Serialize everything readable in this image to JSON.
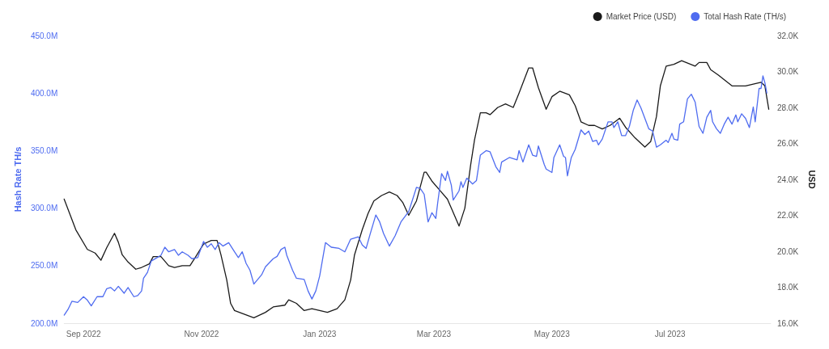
{
  "chart_data": {
    "type": "line",
    "ylabel": "Hash Rate TH/s",
    "y2label": "USD",
    "xlim": [
      "2022-08-22",
      "2023-08-22"
    ],
    "xticks": [
      {
        "value": "2022-09-01",
        "label": "Sep 2022"
      },
      {
        "value": "2022-11-01",
        "label": "Nov 2022"
      },
      {
        "value": "2023-01-01",
        "label": "Jan 2023"
      },
      {
        "value": "2023-03-01",
        "label": "Mar 2023"
      },
      {
        "value": "2023-05-01",
        "label": "May 2023"
      },
      {
        "value": "2023-07-01",
        "label": "Jul 2023"
      }
    ],
    "ylim": [
      200,
      450
    ],
    "yticks": [
      {
        "value": 200,
        "label": "200.0M"
      },
      {
        "value": 250,
        "label": "250.0M"
      },
      {
        "value": 300,
        "label": "300.0M"
      },
      {
        "value": 350,
        "label": "350.0M"
      },
      {
        "value": 400,
        "label": "400.0M"
      },
      {
        "value": 450,
        "label": "450.0M"
      }
    ],
    "y2lim": [
      16,
      32
    ],
    "y2ticks": [
      {
        "value": 16,
        "label": "16.0K"
      },
      {
        "value": 18,
        "label": "18.0K"
      },
      {
        "value": 20,
        "label": "20.0K"
      },
      {
        "value": 22,
        "label": "22.0K"
      },
      {
        "value": 24,
        "label": "24.0K"
      },
      {
        "value": 26,
        "label": "26.0K"
      },
      {
        "value": 28,
        "label": "28.0K"
      },
      {
        "value": 30,
        "label": "30.0K"
      },
      {
        "value": 32,
        "label": "32.0K"
      }
    ],
    "legend": "top right",
    "grid": false,
    "marker": "none",
    "line_style": "solid",
    "series": [
      {
        "name": "Market Price (USD)",
        "color": "#1a1a1a",
        "axis": "y2",
        "x": [
          "2022-08-22",
          "2022-08-28",
          "2022-09-03",
          "2022-09-07",
          "2022-09-10",
          "2022-09-13",
          "2022-09-17",
          "2022-09-19",
          "2022-09-21",
          "2022-09-24",
          "2022-09-28",
          "2022-10-01",
          "2022-10-05",
          "2022-10-07",
          "2022-10-11",
          "2022-10-15",
          "2022-10-18",
          "2022-10-22",
          "2022-10-26",
          "2022-10-29",
          "2022-11-02",
          "2022-11-06",
          "2022-11-09",
          "2022-11-11",
          "2022-11-14",
          "2022-11-16",
          "2022-11-18",
          "2022-11-23",
          "2022-11-28",
          "2022-12-04",
          "2022-12-08",
          "2022-12-14",
          "2022-12-16",
          "2022-12-20",
          "2022-12-24",
          "2022-12-28",
          "2023-01-05",
          "2023-01-10",
          "2023-01-14",
          "2023-01-17",
          "2023-01-19",
          "2023-01-23",
          "2023-01-26",
          "2023-01-29",
          "2023-02-02",
          "2023-02-06",
          "2023-02-10",
          "2023-02-13",
          "2023-02-16",
          "2023-02-20",
          "2023-02-24",
          "2023-02-25",
          "2023-02-28",
          "2023-03-04",
          "2023-03-08",
          "2023-03-10",
          "2023-03-14",
          "2023-03-17",
          "2023-03-20",
          "2023-03-22",
          "2023-03-25",
          "2023-03-28",
          "2023-03-30",
          "2023-04-03",
          "2023-04-07",
          "2023-04-11",
          "2023-04-14",
          "2023-04-19",
          "2023-04-21",
          "2023-04-24",
          "2023-04-28",
          "2023-05-01",
          "2023-05-05",
          "2023-05-10",
          "2023-05-13",
          "2023-05-16",
          "2023-05-20",
          "2023-05-23",
          "2023-05-27",
          "2023-05-31",
          "2023-06-05",
          "2023-06-08",
          "2023-06-13",
          "2023-06-18",
          "2023-06-21",
          "2023-06-24",
          "2023-06-26",
          "2023-06-29",
          "2023-07-03",
          "2023-07-07",
          "2023-07-14",
          "2023-07-16",
          "2023-07-20",
          "2023-07-22",
          "2023-07-26",
          "2023-08-02",
          "2023-08-09",
          "2023-08-17",
          "2023-08-19",
          "2023-08-21"
        ],
        "values": [
          22.9,
          21.2,
          20.1,
          19.9,
          19.5,
          20.2,
          21.0,
          20.5,
          19.8,
          19.4,
          19.0,
          19.1,
          19.3,
          19.7,
          19.7,
          19.2,
          19.1,
          19.2,
          19.2,
          19.7,
          20.4,
          20.6,
          20.6,
          19.8,
          18.4,
          17.1,
          16.7,
          16.5,
          16.3,
          16.6,
          16.9,
          17.0,
          17.3,
          17.1,
          16.7,
          16.8,
          16.6,
          16.8,
          17.3,
          18.4,
          19.8,
          21.2,
          22.1,
          22.8,
          23.1,
          23.3,
          23.1,
          22.7,
          22.0,
          22.8,
          24.4,
          24.4,
          23.9,
          23.4,
          22.9,
          22.4,
          21.4,
          22.4,
          24.8,
          26.2,
          27.7,
          27.7,
          27.6,
          28.0,
          28.2,
          28.0,
          28.8,
          30.2,
          30.2,
          29.1,
          27.9,
          28.6,
          28.9,
          28.7,
          28.1,
          27.2,
          27.0,
          27.0,
          26.8,
          27.0,
          27.4,
          26.9,
          26.3,
          25.8,
          26.1,
          27.5,
          29.2,
          30.3,
          30.4,
          30.6,
          30.3,
          30.5,
          30.5,
          30.1,
          29.8,
          29.2,
          29.2,
          29.4,
          29.2,
          27.9
        ]
      },
      {
        "name": "Total Hash Rate (TH/s)",
        "color": "#4f6cf0",
        "x": [
          "2022-08-22",
          "2022-08-24",
          "2022-08-26",
          "2022-08-29",
          "2022-09-01",
          "2022-09-03",
          "2022-09-05",
          "2022-09-08",
          "2022-09-11",
          "2022-09-13",
          "2022-09-15",
          "2022-09-17",
          "2022-09-19",
          "2022-09-22",
          "2022-09-24",
          "2022-09-27",
          "2022-09-29",
          "2022-10-01",
          "2022-10-02",
          "2022-10-04",
          "2022-10-06",
          "2022-10-09",
          "2022-10-11",
          "2022-10-13",
          "2022-10-15",
          "2022-10-18",
          "2022-10-20",
          "2022-10-22",
          "2022-10-25",
          "2022-10-27",
          "2022-10-30",
          "2022-11-02",
          "2022-11-04",
          "2022-11-06",
          "2022-11-08",
          "2022-11-10",
          "2022-11-12",
          "2022-11-15",
          "2022-11-18",
          "2022-11-20",
          "2022-11-22",
          "2022-11-24",
          "2022-11-26",
          "2022-11-28",
          "2022-11-30",
          "2022-12-02",
          "2022-12-04",
          "2022-12-08",
          "2022-12-10",
          "2022-12-12",
          "2022-12-14",
          "2022-12-15",
          "2022-12-18",
          "2022-12-20",
          "2022-12-24",
          "2022-12-26",
          "2022-12-28",
          "2022-12-30",
          "2023-01-01",
          "2023-01-04",
          "2023-01-07",
          "2023-01-11",
          "2023-01-14",
          "2023-01-17",
          "2023-01-21",
          "2023-01-23",
          "2023-01-25",
          "2023-01-27",
          "2023-01-30",
          "2023-02-01",
          "2023-02-03",
          "2023-02-06",
          "2023-02-09",
          "2023-02-12",
          "2023-02-16",
          "2023-02-20",
          "2023-02-22",
          "2023-02-24",
          "2023-02-26",
          "2023-02-28",
          "2023-03-02",
          "2023-03-03",
          "2023-03-05",
          "2023-03-07",
          "2023-03-08",
          "2023-03-10",
          "2023-03-11",
          "2023-03-14",
          "2023-03-15",
          "2023-03-16",
          "2023-03-18",
          "2023-03-21",
          "2023-03-23",
          "2023-03-25",
          "2023-03-28",
          "2023-03-30",
          "2023-04-02",
          "2023-04-04",
          "2023-04-05",
          "2023-04-09",
          "2023-04-13",
          "2023-04-14",
          "2023-04-16",
          "2023-04-19",
          "2023-04-21",
          "2023-04-23",
          "2023-04-24",
          "2023-04-27",
          "2023-04-28",
          "2023-05-01",
          "2023-05-02",
          "2023-05-05",
          "2023-05-07",
          "2023-05-08",
          "2023-05-09",
          "2023-05-11",
          "2023-05-13",
          "2023-05-16",
          "2023-05-18",
          "2023-05-20",
          "2023-05-22",
          "2023-05-24",
          "2023-05-25",
          "2023-05-27",
          "2023-05-30",
          "2023-06-01",
          "2023-06-02",
          "2023-06-04",
          "2023-06-06",
          "2023-06-08",
          "2023-06-10",
          "2023-06-12",
          "2023-06-14",
          "2023-06-16",
          "2023-06-20",
          "2023-06-22",
          "2023-06-24",
          "2023-06-26",
          "2023-06-29",
          "2023-06-30",
          "2023-07-02",
          "2023-07-03",
          "2023-07-05",
          "2023-07-06",
          "2023-07-08",
          "2023-07-10",
          "2023-07-12",
          "2023-07-14",
          "2023-07-16",
          "2023-07-18",
          "2023-07-20",
          "2023-07-22",
          "2023-07-23",
          "2023-07-25",
          "2023-07-27",
          "2023-07-29",
          "2023-07-31",
          "2023-08-02",
          "2023-08-04",
          "2023-08-05",
          "2023-08-07",
          "2023-08-09",
          "2023-08-11",
          "2023-08-13",
          "2023-08-14",
          "2023-08-16",
          "2023-08-17",
          "2023-08-18",
          "2023-08-19",
          "2023-08-20"
        ],
        "values": [
          207,
          212,
          219,
          218,
          223,
          220,
          215,
          223,
          223,
          230,
          231,
          228,
          232,
          226,
          231,
          223,
          224,
          228,
          239,
          244,
          254,
          257,
          259,
          266,
          262,
          264,
          259,
          262,
          259,
          256,
          257,
          271,
          266,
          269,
          264,
          270,
          267,
          270,
          262,
          257,
          262,
          252,
          246,
          234,
          238,
          242,
          249,
          256,
          258,
          264,
          266,
          259,
          246,
          239,
          238,
          228,
          221,
          228,
          241,
          270,
          266,
          265,
          262,
          273,
          275,
          268,
          265,
          277,
          294,
          288,
          278,
          267,
          276,
          288,
          297,
          318,
          317,
          312,
          288,
          296,
          291,
          305,
          330,
          324,
          332,
          320,
          307,
          315,
          323,
          318,
          326,
          321,
          324,
          346,
          350,
          349,
          336,
          331,
          340,
          344,
          342,
          350,
          340,
          355,
          346,
          345,
          354,
          338,
          334,
          331,
          344,
          355,
          345,
          344,
          328,
          344,
          351,
          368,
          364,
          367,
          358,
          359,
          355,
          360,
          375,
          375,
          370,
          375,
          363,
          363,
          371,
          385,
          394,
          387,
          369,
          367,
          353,
          355,
          359,
          357,
          365,
          360,
          359,
          373,
          375,
          395,
          399,
          392,
          371,
          365,
          379,
          385,
          375,
          369,
          365,
          373,
          379,
          373,
          381,
          375,
          382,
          378,
          370,
          388,
          375,
          404,
          404,
          415,
          409,
          400
        ]
      }
    ]
  }
}
